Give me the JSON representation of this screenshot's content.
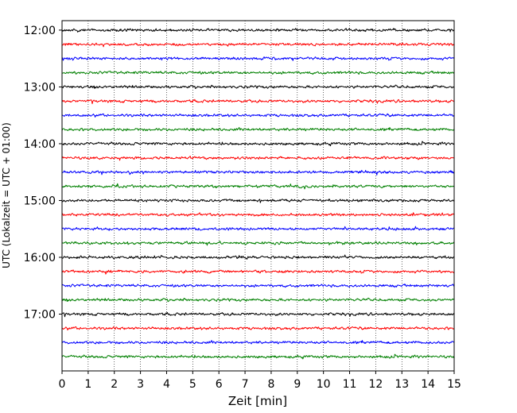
{
  "chart_data": {
    "type": "line",
    "title": "",
    "xlabel": "Zeit  [min]",
    "ylabel": "UTC (Lokalzeit = UTC + 01:00)",
    "xlim": [
      0,
      15
    ],
    "x_ticks": [
      "0",
      "1",
      "2",
      "3",
      "4",
      "5",
      "6",
      "7",
      "8",
      "9",
      "10",
      "11",
      "12",
      "13",
      "14",
      "15"
    ],
    "y_ticks": [
      "12:00",
      "13:00",
      "14:00",
      "15:00",
      "16:00",
      "17:00"
    ],
    "y_range": [
      "11:50",
      "18:00"
    ],
    "grid": "vertical dotted lines at each minute",
    "trace_interval_minutes": 15,
    "color_cycle": [
      "#000000",
      "#ff0000",
      "#0000ff",
      "#008000"
    ],
    "series": [
      {
        "start": "12:00",
        "color": "#000000"
      },
      {
        "start": "12:15",
        "color": "#ff0000"
      },
      {
        "start": "12:30",
        "color": "#0000ff"
      },
      {
        "start": "12:45",
        "color": "#008000"
      },
      {
        "start": "13:00",
        "color": "#000000"
      },
      {
        "start": "13:15",
        "color": "#ff0000"
      },
      {
        "start": "13:30",
        "color": "#0000ff"
      },
      {
        "start": "13:45",
        "color": "#008000"
      },
      {
        "start": "14:00",
        "color": "#000000"
      },
      {
        "start": "14:15",
        "color": "#ff0000"
      },
      {
        "start": "14:30",
        "color": "#0000ff"
      },
      {
        "start": "14:45",
        "color": "#008000"
      },
      {
        "start": "15:00",
        "color": "#000000"
      },
      {
        "start": "15:15",
        "color": "#ff0000"
      },
      {
        "start": "15:30",
        "color": "#0000ff"
      },
      {
        "start": "15:45",
        "color": "#008000"
      },
      {
        "start": "16:00",
        "color": "#000000"
      },
      {
        "start": "16:15",
        "color": "#ff0000"
      },
      {
        "start": "16:30",
        "color": "#0000ff"
      },
      {
        "start": "16:45",
        "color": "#008000"
      },
      {
        "start": "17:00",
        "color": "#000000"
      },
      {
        "start": "17:15",
        "color": "#ff0000"
      },
      {
        "start": "17:30",
        "color": "#0000ff"
      },
      {
        "start": "17:45",
        "color": "#008000"
      }
    ]
  }
}
